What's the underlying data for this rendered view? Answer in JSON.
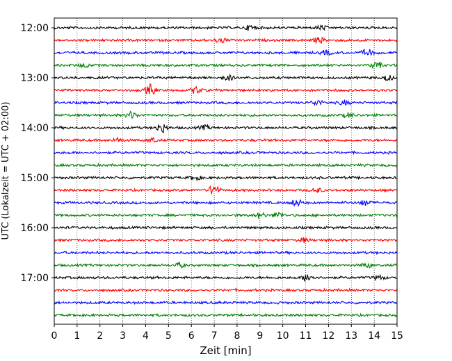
{
  "chart_data": {
    "type": "line",
    "subtype": "helicorder",
    "title": "",
    "xlabel": "Zeit  [min]",
    "ylabel": "UTC (Lokalzeit = UTC + 02:00)",
    "xlim": [
      0,
      15
    ],
    "x_ticks": [
      "0",
      "1",
      "2",
      "3",
      "4",
      "5",
      "6",
      "7",
      "8",
      "9",
      "10",
      "11",
      "12",
      "13",
      "14",
      "15"
    ],
    "y_ticks": [
      {
        "label": "12:00",
        "trace": 0
      },
      {
        "label": "13:00",
        "trace": 4
      },
      {
        "label": "14:00",
        "trace": 8
      },
      {
        "label": "15:00",
        "trace": 12
      },
      {
        "label": "16:00",
        "trace": 16
      },
      {
        "label": "17:00",
        "trace": 20
      }
    ],
    "grid": "vertical-dotted",
    "trace_minutes": 15,
    "trace_colors": [
      "#000000",
      "#ff0000",
      "#0000ff",
      "#008000"
    ],
    "traces": [
      {
        "start": "12:00",
        "events": [
          {
            "t": 8.6,
            "a": 4
          },
          {
            "t": 11.7,
            "a": 3
          }
        ]
      },
      {
        "start": "12:15",
        "events": [
          {
            "t": 7.3,
            "a": 4
          },
          {
            "t": 11.6,
            "a": 4
          }
        ]
      },
      {
        "start": "12:30",
        "events": [
          {
            "t": 11.9,
            "a": 3
          },
          {
            "t": 13.7,
            "a": 5
          }
        ]
      },
      {
        "start": "12:45",
        "events": [
          {
            "t": 1.3,
            "a": 3
          },
          {
            "t": 14.1,
            "a": 5
          }
        ]
      },
      {
        "start": "13:00",
        "events": [
          {
            "t": 7.6,
            "a": 4
          },
          {
            "t": 14.6,
            "a": 4
          }
        ]
      },
      {
        "start": "13:15",
        "events": [
          {
            "t": 4.2,
            "a": 8
          },
          {
            "t": 6.2,
            "a": 5
          }
        ]
      },
      {
        "start": "13:30",
        "events": [
          {
            "t": 11.5,
            "a": 4
          },
          {
            "t": 12.7,
            "a": 3
          }
        ]
      },
      {
        "start": "13:45",
        "events": [
          {
            "t": 3.4,
            "a": 5
          },
          {
            "t": 12.9,
            "a": 3
          }
        ]
      },
      {
        "start": "14:00",
        "events": [
          {
            "t": 4.7,
            "a": 7
          },
          {
            "t": 6.6,
            "a": 3
          }
        ]
      },
      {
        "start": "14:15",
        "events": [
          {
            "t": 2.8,
            "a": 3
          },
          {
            "t": 4.3,
            "a": 3
          }
        ]
      },
      {
        "start": "14:30",
        "events": []
      },
      {
        "start": "14:45",
        "events": []
      },
      {
        "start": "15:00",
        "events": [
          {
            "t": 6.2,
            "a": 3
          }
        ]
      },
      {
        "start": "15:15",
        "events": [
          {
            "t": 7.0,
            "a": 8
          },
          {
            "t": 11.5,
            "a": 3
          }
        ]
      },
      {
        "start": "15:30",
        "events": [
          {
            "t": 10.6,
            "a": 5
          },
          {
            "t": 13.6,
            "a": 4
          }
        ]
      },
      {
        "start": "15:45",
        "events": [
          {
            "t": 9.0,
            "a": 4
          },
          {
            "t": 9.8,
            "a": 4
          }
        ]
      },
      {
        "start": "16:00",
        "events": []
      },
      {
        "start": "16:15",
        "events": [
          {
            "t": 10.9,
            "a": 3
          }
        ]
      },
      {
        "start": "16:30",
        "events": []
      },
      {
        "start": "16:45",
        "events": [
          {
            "t": 5.5,
            "a": 3
          },
          {
            "t": 13.7,
            "a": 3
          }
        ]
      },
      {
        "start": "17:00",
        "events": [
          {
            "t": 11.1,
            "a": 6
          },
          {
            "t": 14.2,
            "a": 3
          }
        ]
      },
      {
        "start": "17:15",
        "events": []
      },
      {
        "start": "17:30",
        "events": []
      },
      {
        "start": "17:45",
        "events": []
      }
    ]
  }
}
